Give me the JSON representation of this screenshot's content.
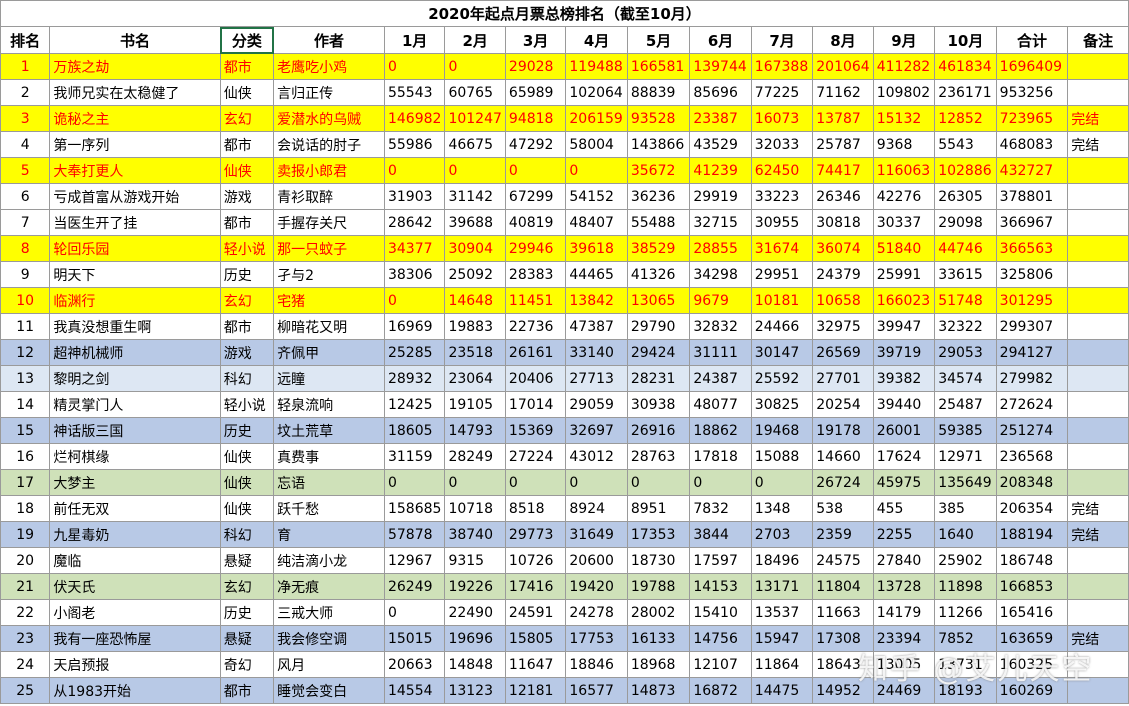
{
  "title": "2020年起点月票总榜排名（截至10月）",
  "headers": [
    "排名",
    "书名",
    "分类",
    "作者",
    "1月",
    "2月",
    "3月",
    "4月",
    "5月",
    "6月",
    "7月",
    "8月",
    "9月",
    "10月",
    "合计",
    "备注"
  ],
  "rows": [
    {
      "style": "yellow",
      "cells": [
        "1",
        "万族之劫",
        "都市",
        "老鹰吃小鸡",
        "0",
        "0",
        "29028",
        "119488",
        "166581",
        "139744",
        "167388",
        "201064",
        "411282",
        "461834",
        "1696409",
        ""
      ]
    },
    {
      "style": "",
      "cells": [
        "2",
        "我师兄实在太稳健了",
        "仙侠",
        "言归正传",
        "55543",
        "60765",
        "65989",
        "102064",
        "88839",
        "85696",
        "77225",
        "71162",
        "109802",
        "236171",
        "953256",
        ""
      ]
    },
    {
      "style": "yellow",
      "cells": [
        "3",
        "诡秘之主",
        "玄幻",
        "爱潜水的乌贼",
        "146982",
        "101247",
        "94818",
        "206159",
        "93528",
        "23387",
        "16073",
        "13787",
        "15132",
        "12852",
        "723965",
        "完结"
      ]
    },
    {
      "style": "",
      "cells": [
        "4",
        "第一序列",
        "都市",
        "会说话的肘子",
        "55986",
        "46675",
        "47292",
        "58004",
        "143866",
        "43529",
        "32033",
        "25787",
        "9368",
        "5543",
        "468083",
        "完结"
      ]
    },
    {
      "style": "yellow",
      "cells": [
        "5",
        "大奉打更人",
        "仙侠",
        "卖报小郎君",
        "0",
        "0",
        "0",
        "0",
        "35672",
        "41239",
        "62450",
        "74417",
        "116063",
        "102886",
        "432727",
        ""
      ]
    },
    {
      "style": "",
      "cells": [
        "6",
        "亏成首富从游戏开始",
        "游戏",
        "青衫取醉",
        "31903",
        "31142",
        "67299",
        "54152",
        "36236",
        "29919",
        "33223",
        "26346",
        "42276",
        "26305",
        "378801",
        ""
      ]
    },
    {
      "style": "",
      "cells": [
        "7",
        "当医生开了挂",
        "都市",
        "手握存关尺",
        "28642",
        "39688",
        "40819",
        "48407",
        "55488",
        "32715",
        "30955",
        "30818",
        "30337",
        "29098",
        "366967",
        ""
      ]
    },
    {
      "style": "yellow",
      "cells": [
        "8",
        "轮回乐园",
        "轻小说",
        "那一只蚊子",
        "34377",
        "30904",
        "29946",
        "39618",
        "38529",
        "28855",
        "31674",
        "36074",
        "51840",
        "44746",
        "366563",
        ""
      ]
    },
    {
      "style": "",
      "cells": [
        "9",
        "明天下",
        "历史",
        "孑与2",
        "38306",
        "25092",
        "28383",
        "44465",
        "41326",
        "34298",
        "29951",
        "24379",
        "25991",
        "33615",
        "325806",
        ""
      ]
    },
    {
      "style": "yellow",
      "cells": [
        "10",
        "临渊行",
        "玄幻",
        "宅猪",
        "0",
        "14648",
        "11451",
        "13842",
        "13065",
        "9679",
        "10181",
        "10658",
        "166023",
        "51748",
        "301295",
        ""
      ]
    },
    {
      "style": "",
      "cells": [
        "11",
        "我真没想重生啊",
        "都市",
        "柳暗花又明",
        "16969",
        "19883",
        "22736",
        "47387",
        "29790",
        "32832",
        "24466",
        "32975",
        "39947",
        "32322",
        "299307",
        ""
      ]
    },
    {
      "style": "blue",
      "cells": [
        "12",
        "超神机械师",
        "游戏",
        "齐佩甲",
        "25285",
        "23518",
        "26161",
        "33140",
        "29424",
        "31111",
        "30147",
        "26569",
        "39719",
        "29053",
        "294127",
        ""
      ]
    },
    {
      "style": "lightblue",
      "cells": [
        "13",
        "黎明之剑",
        "科幻",
        "远瞳",
        "28932",
        "23064",
        "20406",
        "27713",
        "28231",
        "24387",
        "25592",
        "27701",
        "39382",
        "34574",
        "279982",
        ""
      ]
    },
    {
      "style": "",
      "cells": [
        "14",
        "精灵掌门人",
        "轻小说",
        "轻泉流响",
        "12425",
        "19105",
        "17014",
        "29059",
        "30938",
        "48077",
        "30825",
        "20254",
        "39440",
        "25487",
        "272624",
        ""
      ]
    },
    {
      "style": "blue",
      "cells": [
        "15",
        "神话版三国",
        "历史",
        "坟土荒草",
        "18605",
        "14793",
        "15369",
        "32697",
        "26916",
        "18862",
        "19468",
        "19178",
        "26001",
        "59385",
        "251274",
        ""
      ]
    },
    {
      "style": "",
      "cells": [
        "16",
        "烂柯棋缘",
        "仙侠",
        "真费事",
        "31159",
        "28249",
        "27224",
        "43012",
        "28763",
        "17818",
        "15088",
        "14660",
        "17624",
        "12971",
        "236568",
        ""
      ]
    },
    {
      "style": "green",
      "cells": [
        "17",
        "大梦主",
        "仙侠",
        "忘语",
        "0",
        "0",
        "0",
        "0",
        "0",
        "0",
        "0",
        "26724",
        "45975",
        "135649",
        "208348",
        ""
      ]
    },
    {
      "style": "",
      "cells": [
        "18",
        "前任无双",
        "仙侠",
        "跃千愁",
        "158685",
        "10718",
        "8518",
        "8924",
        "8951",
        "7832",
        "1348",
        "538",
        "455",
        "385",
        "206354",
        "完结"
      ]
    },
    {
      "style": "blue",
      "cells": [
        "19",
        "九星毒奶",
        "科幻",
        "育",
        "57878",
        "38740",
        "29773",
        "31649",
        "17353",
        "3844",
        "2703",
        "2359",
        "2255",
        "1640",
        "188194",
        "完结"
      ]
    },
    {
      "style": "",
      "cells": [
        "20",
        "魔临",
        "悬疑",
        "纯洁滴小龙",
        "12967",
        "9315",
        "10726",
        "20600",
        "18730",
        "17597",
        "18496",
        "24575",
        "27840",
        "25902",
        "186748",
        ""
      ]
    },
    {
      "style": "green",
      "cells": [
        "21",
        "伏天氏",
        "玄幻",
        "净无痕",
        "26249",
        "19226",
        "17416",
        "19420",
        "19788",
        "14153",
        "13171",
        "11804",
        "13728",
        "11898",
        "166853",
        ""
      ]
    },
    {
      "style": "",
      "cells": [
        "22",
        "小阁老",
        "历史",
        "三戒大师",
        "0",
        "22490",
        "24591",
        "24278",
        "28002",
        "15410",
        "13537",
        "11663",
        "14179",
        "11266",
        "165416",
        ""
      ]
    },
    {
      "style": "blue",
      "cells": [
        "23",
        "我有一座恐怖屋",
        "悬疑",
        "我会修空调",
        "15015",
        "19696",
        "15805",
        "17753",
        "16133",
        "14756",
        "15947",
        "17308",
        "23394",
        "7852",
        "163659",
        "完结"
      ]
    },
    {
      "style": "",
      "cells": [
        "24",
        "天启预报",
        "奇幻",
        "风月",
        "20663",
        "14848",
        "11647",
        "18846",
        "18968",
        "12107",
        "11864",
        "18643",
        "13005",
        "13731",
        "160325",
        ""
      ]
    },
    {
      "style": "blue",
      "cells": [
        "25",
        "从1983开始",
        "都市",
        "睡觉会变白",
        "14554",
        "13123",
        "12181",
        "16577",
        "14873",
        "16872",
        "14475",
        "14952",
        "24469",
        "18193",
        "160269",
        ""
      ]
    }
  ],
  "watermark": "知乎 @艾儿天空"
}
